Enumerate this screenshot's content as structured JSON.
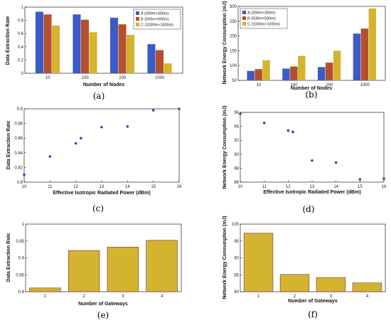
{
  "chart_data": [
    {
      "id": "a",
      "panel_label": "(a)",
      "type": "bar",
      "categories": [
        "10",
        "100",
        "200",
        "1000"
      ],
      "series": [
        {
          "name": "A (300m×300m)",
          "color": "#3b5bc7",
          "values": [
            0.93,
            0.89,
            0.84,
            0.44
          ]
        },
        {
          "name": "B (500m×500m)",
          "color": "#b5502e",
          "values": [
            0.89,
            0.81,
            0.74,
            0.35
          ]
        },
        {
          "name": "C (1000m×1000m)",
          "color": "#d4b32f",
          "values": [
            0.72,
            0.62,
            0.58,
            0.15
          ]
        }
      ],
      "xlabel": "Number of Nodes",
      "ylabel": "Data Extraction Rate",
      "ylim": [
        0,
        1
      ],
      "yticks": [
        "0",
        "0.2",
        "0.4",
        "0.6",
        "0.8",
        "1"
      ],
      "legend": "top-right"
    },
    {
      "id": "b",
      "panel_label": "(b)",
      "type": "bar",
      "categories": [
        "10",
        "100",
        "200",
        "1000"
      ],
      "series": [
        {
          "name": "A (300m×300m)",
          "color": "#3b5bc7",
          "values": [
            82,
            90,
            95,
            208
          ]
        },
        {
          "name": "B (500m×500m)",
          "color": "#b5502e",
          "values": [
            88,
            97,
            110,
            225
          ]
        },
        {
          "name": "C (1000m×1000m)",
          "color": "#d4b32f",
          "values": [
            118,
            133,
            150,
            293
          ]
        }
      ],
      "xlabel": "Number of Nodes",
      "ylabel": "Network Energy Consumption (mJ)",
      "ylim": [
        50,
        300
      ],
      "yticks": [
        "50",
        "100",
        "150",
        "200",
        "250",
        "300"
      ],
      "legend": "top-left"
    },
    {
      "id": "c",
      "panel_label": "(c)",
      "type": "scatter",
      "x": [
        10,
        11,
        12,
        12.2,
        13,
        14,
        15,
        16
      ],
      "y": [
        0.81,
        0.835,
        0.853,
        0.86,
        0.875,
        0.876,
        0.898,
        0.9
      ],
      "color": "#2a4fb0",
      "xlabel": "Effective Isotropic Radiated Power (dBm)",
      "ylabel": "Data Extraction Rate",
      "xlim": [
        10,
        16
      ],
      "ylim": [
        0.8,
        0.9
      ],
      "xticks": [
        "10",
        "11",
        "12",
        "13",
        "14",
        "15",
        "16"
      ],
      "yticks": [
        "0.8",
        "0.82",
        "0.84",
        "0.86",
        "0.88",
        "0.9"
      ],
      "grid": false
    },
    {
      "id": "d",
      "panel_label": "(d)",
      "type": "scatter",
      "x": [
        10,
        11,
        12,
        12.2,
        13,
        14,
        15,
        16
      ],
      "y": [
        95.8,
        94.5,
        93.4,
        93.2,
        89.1,
        88.8,
        86.4,
        86.5
      ],
      "color": "#2a4fb0",
      "xlabel": "Effective Isotropic Radiated Power (dBm)",
      "ylabel": "Network Energy Consumption (mJ)",
      "xlim": [
        10,
        16
      ],
      "ylim": [
        86,
        96
      ],
      "xticks": [
        "10",
        "11",
        "12",
        "13",
        "14",
        "15",
        "16"
      ],
      "yticks": [
        "86",
        "88",
        "90",
        "92",
        "94",
        "96"
      ],
      "grid": false
    },
    {
      "id": "e",
      "panel_label": "(e)",
      "type": "bar",
      "categories": [
        "1",
        "2",
        "3",
        "4"
      ],
      "values": [
        0.811,
        0.922,
        0.932,
        0.952
      ],
      "color": "#d4b32f",
      "edge_color": "#7a2a4a",
      "xlabel": "Number of Gateways",
      "ylabel": "Data Extraction Rate",
      "ylim": [
        0.8,
        1
      ],
      "yticks": [
        "0.8",
        "0.85",
        "0.9",
        "0.95",
        "1"
      ]
    },
    {
      "id": "f",
      "panel_label": "(f)",
      "type": "bar",
      "categories": [
        "1",
        "2",
        "3",
        "4"
      ],
      "values": [
        97.3,
        85.1,
        84.2,
        82.6
      ],
      "color": "#d4b32f",
      "edge_color": "#7a2a4a",
      "xlabel": "Number of Gateways",
      "ylabel": "Network Energy Consumption (mJ)",
      "ylim": [
        80,
        100
      ],
      "yticks": [
        "80",
        "85",
        "90",
        "95",
        "100"
      ]
    }
  ]
}
